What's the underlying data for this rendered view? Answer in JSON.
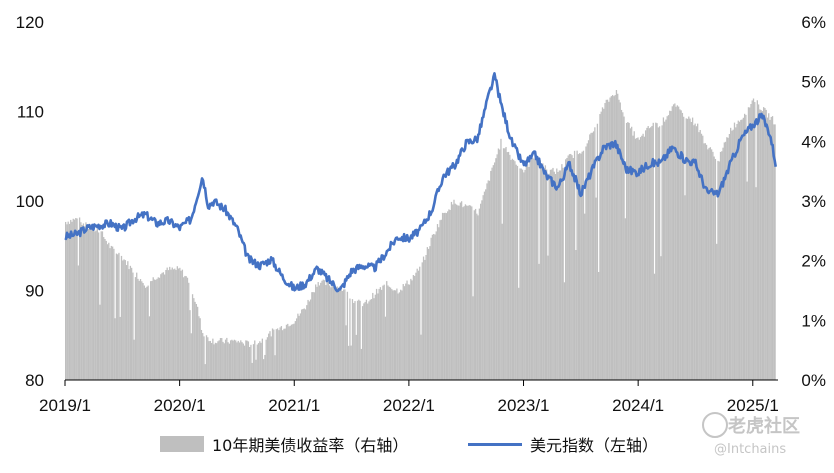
{
  "chart_data": {
    "type": "bar+line",
    "x_ticks": [
      "2019/1",
      "2020/1",
      "2021/1",
      "2022/1",
      "2023/1",
      "2024/1",
      "2025/1"
    ],
    "x_range": [
      2019.0,
      2025.22
    ],
    "left_axis": {
      "ticks": [
        "80",
        "90",
        "100",
        "110",
        "120"
      ],
      "range": [
        80,
        120
      ]
    },
    "right_axis": {
      "ticks": [
        "0%",
        "1%",
        "2%",
        "3%",
        "4%",
        "5%",
        "6%"
      ],
      "range": [
        0,
        6
      ]
    },
    "series": [
      {
        "name": "10年期美债收益率（右轴）",
        "kind": "area-bars",
        "axis": "right",
        "color": "#bfbfbf",
        "points": [
          [
            2019.0,
            2.65
          ],
          [
            2019.1,
            2.7
          ],
          [
            2019.2,
            2.55
          ],
          [
            2019.3,
            2.5
          ],
          [
            2019.4,
            2.2
          ],
          [
            2019.5,
            2.05
          ],
          [
            2019.6,
            1.8
          ],
          [
            2019.7,
            1.6
          ],
          [
            2019.8,
            1.75
          ],
          [
            2019.9,
            1.85
          ],
          [
            2020.0,
            1.85
          ],
          [
            2020.08,
            1.65
          ],
          [
            2020.15,
            1.2
          ],
          [
            2020.2,
            0.75
          ],
          [
            2020.3,
            0.65
          ],
          [
            2020.4,
            0.65
          ],
          [
            2020.5,
            0.65
          ],
          [
            2020.6,
            0.6
          ],
          [
            2020.7,
            0.65
          ],
          [
            2020.8,
            0.8
          ],
          [
            2020.9,
            0.9
          ],
          [
            2021.0,
            1.0
          ],
          [
            2021.1,
            1.25
          ],
          [
            2021.2,
            1.65
          ],
          [
            2021.3,
            1.6
          ],
          [
            2021.4,
            1.55
          ],
          [
            2021.5,
            1.35
          ],
          [
            2021.6,
            1.25
          ],
          [
            2021.7,
            1.45
          ],
          [
            2021.8,
            1.6
          ],
          [
            2021.9,
            1.5
          ],
          [
            2022.0,
            1.65
          ],
          [
            2022.1,
            1.9
          ],
          [
            2022.2,
            2.4
          ],
          [
            2022.3,
            2.8
          ],
          [
            2022.4,
            3.0
          ],
          [
            2022.5,
            2.9
          ],
          [
            2022.6,
            2.8
          ],
          [
            2022.7,
            3.4
          ],
          [
            2022.8,
            4.0
          ],
          [
            2022.9,
            3.7
          ],
          [
            2023.0,
            3.5
          ],
          [
            2023.1,
            3.8
          ],
          [
            2023.2,
            3.5
          ],
          [
            2023.3,
            3.5
          ],
          [
            2023.4,
            3.75
          ],
          [
            2023.5,
            3.85
          ],
          [
            2023.6,
            4.15
          ],
          [
            2023.7,
            4.6
          ],
          [
            2023.8,
            4.85
          ],
          [
            2023.9,
            4.3
          ],
          [
            2024.0,
            4.0
          ],
          [
            2024.1,
            4.25
          ],
          [
            2024.2,
            4.3
          ],
          [
            2024.3,
            4.6
          ],
          [
            2024.4,
            4.45
          ],
          [
            2024.5,
            4.3
          ],
          [
            2024.6,
            3.9
          ],
          [
            2024.7,
            3.7
          ],
          [
            2024.8,
            4.2
          ],
          [
            2024.9,
            4.4
          ],
          [
            2025.0,
            4.7
          ],
          [
            2025.1,
            4.5
          ],
          [
            2025.2,
            4.3
          ]
        ]
      },
      {
        "name": "美元指数（左轴）",
        "kind": "line",
        "axis": "left",
        "color": "#4472c4",
        "points": [
          [
            2019.0,
            96.0
          ],
          [
            2019.1,
            96.3
          ],
          [
            2019.2,
            97.0
          ],
          [
            2019.3,
            97.3
          ],
          [
            2019.4,
            97.5
          ],
          [
            2019.5,
            96.8
          ],
          [
            2019.6,
            98.0
          ],
          [
            2019.7,
            98.5
          ],
          [
            2019.8,
            97.5
          ],
          [
            2019.9,
            97.8
          ],
          [
            2020.0,
            97.0
          ],
          [
            2020.1,
            98.0
          ],
          [
            2020.2,
            102.8
          ],
          [
            2020.25,
            99.5
          ],
          [
            2020.3,
            100.0
          ],
          [
            2020.4,
            99.0
          ],
          [
            2020.5,
            97.0
          ],
          [
            2020.6,
            93.5
          ],
          [
            2020.7,
            92.8
          ],
          [
            2020.8,
            93.5
          ],
          [
            2020.9,
            91.5
          ],
          [
            2021.0,
            90.2
          ],
          [
            2021.1,
            90.8
          ],
          [
            2021.2,
            92.5
          ],
          [
            2021.3,
            91.2
          ],
          [
            2021.4,
            90.0
          ],
          [
            2021.5,
            92.2
          ],
          [
            2021.6,
            92.8
          ],
          [
            2021.7,
            92.5
          ],
          [
            2021.8,
            94.2
          ],
          [
            2021.9,
            96.0
          ],
          [
            2022.0,
            95.8
          ],
          [
            2022.1,
            96.8
          ],
          [
            2022.2,
            99.0
          ],
          [
            2022.3,
            102.8
          ],
          [
            2022.4,
            104.0
          ],
          [
            2022.5,
            106.5
          ],
          [
            2022.6,
            107.0
          ],
          [
            2022.7,
            112.0
          ],
          [
            2022.75,
            114.0
          ],
          [
            2022.8,
            111.0
          ],
          [
            2022.9,
            106.5
          ],
          [
            2023.0,
            104.0
          ],
          [
            2023.1,
            105.2
          ],
          [
            2023.2,
            102.8
          ],
          [
            2023.3,
            101.5
          ],
          [
            2023.4,
            104.2
          ],
          [
            2023.5,
            100.8
          ],
          [
            2023.6,
            103.5
          ],
          [
            2023.7,
            106.0
          ],
          [
            2023.8,
            106.5
          ],
          [
            2023.9,
            103.5
          ],
          [
            2024.0,
            103.2
          ],
          [
            2024.1,
            104.2
          ],
          [
            2024.2,
            104.3
          ],
          [
            2024.3,
            106.0
          ],
          [
            2024.4,
            104.7
          ],
          [
            2024.5,
            104.2
          ],
          [
            2024.6,
            101.0
          ],
          [
            2024.7,
            100.8
          ],
          [
            2024.8,
            104.0
          ],
          [
            2024.9,
            107.0
          ],
          [
            2025.0,
            108.5
          ],
          [
            2025.08,
            109.5
          ],
          [
            2025.15,
            107.5
          ],
          [
            2025.2,
            104.2
          ]
        ]
      }
    ]
  },
  "legend": {
    "bar_label": "10年期美债收益率（右轴）",
    "line_label": "美元指数（左轴）"
  },
  "watermark": {
    "main": "老虎社区",
    "sub": "@Intchains"
  }
}
